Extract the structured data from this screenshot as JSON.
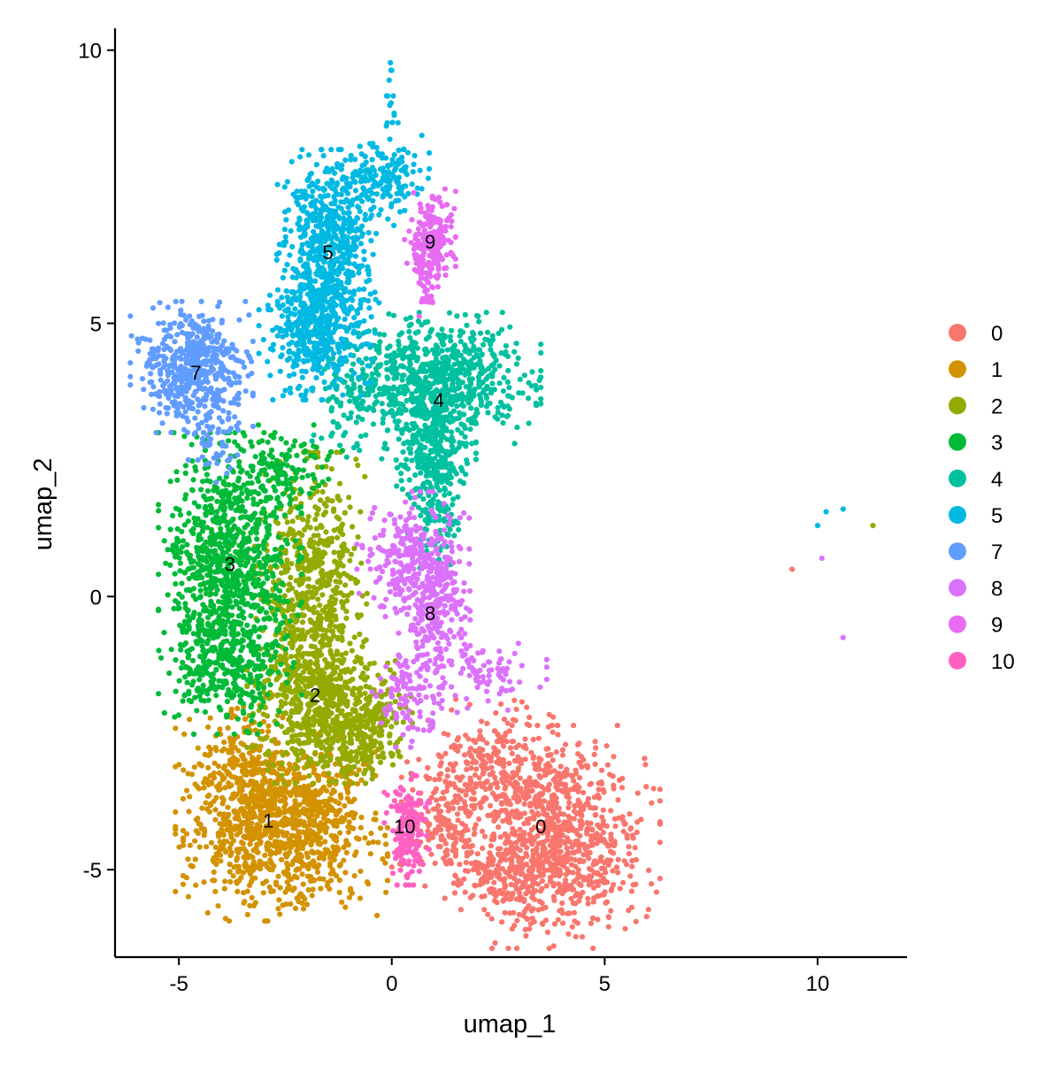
{
  "chart_data": {
    "type": "scatter",
    "title": "",
    "xlabel": "umap_1",
    "ylabel": "umap_2",
    "xlim": [
      -6.5,
      12.1
    ],
    "ylim": [
      -6.6,
      10.4
    ],
    "xticks": [
      -5,
      0,
      5,
      10
    ],
    "yticks": [
      -5,
      0,
      5,
      10
    ],
    "xtick_labels": [
      "-5",
      "0",
      "5",
      "10"
    ],
    "ytick_labels": [
      "-5",
      "0",
      "5",
      "10"
    ],
    "grid": false,
    "legend_position": "right",
    "series": [
      {
        "name": "0",
        "color": "#F8766D",
        "label_x": 3.5,
        "label_y": -4.2,
        "blobs": [
          {
            "cx": 3.9,
            "cy": -4.4,
            "sx": 1.0,
            "sy": 0.85,
            "n": 900
          },
          {
            "cx": 2.4,
            "cy": -3.2,
            "sx": 0.7,
            "sy": 0.55,
            "n": 260
          },
          {
            "cx": 1.2,
            "cy": -4.1,
            "sx": 0.5,
            "sy": 0.5,
            "n": 160
          },
          {
            "cx": 2.6,
            "cy": -5.1,
            "sx": 0.7,
            "sy": 0.3,
            "n": 140
          }
        ],
        "extra": [
          [
            9.4,
            0.5
          ]
        ]
      },
      {
        "name": "1",
        "color": "#D39200",
        "label_x": -2.9,
        "label_y": -4.1,
        "blobs": [
          {
            "cx": -3.4,
            "cy": -3.6,
            "sx": 0.7,
            "sy": 0.75,
            "n": 480
          },
          {
            "cx": -2.5,
            "cy": -4.5,
            "sx": 1.0,
            "sy": 0.6,
            "n": 560
          },
          {
            "cx": -1.7,
            "cy": -3.7,
            "sx": 0.55,
            "sy": 0.55,
            "n": 220
          }
        ],
        "extra": []
      },
      {
        "name": "2",
        "color": "#93AA00",
        "label_x": -1.8,
        "label_y": -1.8,
        "blobs": [
          {
            "cx": -1.9,
            "cy": 0.0,
            "sx": 0.55,
            "sy": 1.1,
            "n": 650
          },
          {
            "cx": -1.6,
            "cy": -2.1,
            "sx": 0.75,
            "sy": 0.55,
            "n": 520
          },
          {
            "cx": -0.6,
            "cy": -2.3,
            "sx": 0.45,
            "sy": 0.45,
            "n": 220
          }
        ],
        "extra": [
          [
            11.3,
            1.3
          ]
        ]
      },
      {
        "name": "3",
        "color": "#00BA38",
        "label_x": -3.8,
        "label_y": 0.6,
        "blobs": [
          {
            "cx": -3.8,
            "cy": 0.6,
            "sx": 0.7,
            "sy": 1.0,
            "n": 900
          },
          {
            "cx": -3.9,
            "cy": -1.2,
            "sx": 0.6,
            "sy": 0.55,
            "n": 320
          },
          {
            "cx": -2.6,
            "cy": 2.3,
            "sx": 0.6,
            "sy": 0.35,
            "n": 120
          }
        ],
        "extra": []
      },
      {
        "name": "4",
        "color": "#00C19F",
        "label_x": 1.1,
        "label_y": 3.6,
        "blobs": [
          {
            "cx": 1.1,
            "cy": 4.0,
            "sx": 1.0,
            "sy": 0.5,
            "n": 650
          },
          {
            "cx": 0.9,
            "cy": 2.8,
            "sx": 0.45,
            "sy": 0.55,
            "n": 320
          },
          {
            "cx": 1.1,
            "cy": 1.6,
            "sx": 0.3,
            "sy": 0.45,
            "n": 100
          },
          {
            "cx": -0.8,
            "cy": 3.6,
            "sx": 0.45,
            "sy": 0.45,
            "n": 120
          }
        ],
        "extra": []
      },
      {
        "name": "5",
        "color": "#00B9E3",
        "label_x": -1.5,
        "label_y": 6.3,
        "blobs": [
          {
            "cx": -1.5,
            "cy": 6.5,
            "sx": 0.5,
            "sy": 0.7,
            "n": 600
          },
          {
            "cx": -1.8,
            "cy": 4.8,
            "sx": 0.55,
            "sy": 0.5,
            "n": 420
          },
          {
            "cx": -0.2,
            "cy": 7.6,
            "sx": 0.45,
            "sy": 0.35,
            "n": 160
          },
          {
            "cx": 0.0,
            "cy": 9.0,
            "sx": 0.08,
            "sy": 0.45,
            "n": 16
          }
        ],
        "extra": [
          [
            10.0,
            1.3
          ],
          [
            10.2,
            1.55
          ],
          [
            10.6,
            1.6
          ]
        ]
      },
      {
        "name": "7",
        "color": "#619CFF",
        "label_x": -4.6,
        "label_y": 4.1,
        "blobs": [
          {
            "cx": -4.7,
            "cy": 4.2,
            "sx": 0.6,
            "sy": 0.5,
            "n": 520
          },
          {
            "cx": -4.2,
            "cy": 2.9,
            "sx": 0.4,
            "sy": 0.35,
            "n": 50
          }
        ],
        "extra": []
      },
      {
        "name": "8",
        "color": "#DB72FB",
        "label_x": 0.9,
        "label_y": -0.3,
        "blobs": [
          {
            "cx": 0.5,
            "cy": 0.6,
            "sx": 0.55,
            "sy": 0.55,
            "n": 300
          },
          {
            "cx": 1.0,
            "cy": -0.4,
            "sx": 0.35,
            "sy": 0.6,
            "n": 200
          },
          {
            "cx": 2.2,
            "cy": -1.4,
            "sx": 0.6,
            "sy": 0.3,
            "n": 80
          },
          {
            "cx": 0.5,
            "cy": -1.8,
            "sx": 0.4,
            "sy": 0.4,
            "n": 110
          }
        ],
        "extra": [
          [
            10.1,
            0.7
          ],
          [
            10.6,
            -0.75
          ]
        ]
      },
      {
        "name": "9",
        "color": "#E76BF3",
        "label_x": 0.9,
        "label_y": 6.5,
        "blobs": [
          {
            "cx": 0.9,
            "cy": 6.5,
            "sx": 0.25,
            "sy": 0.4,
            "n": 220
          },
          {
            "cx": 0.8,
            "cy": 5.7,
            "sx": 0.12,
            "sy": 0.3,
            "n": 30
          }
        ],
        "extra": []
      },
      {
        "name": "10",
        "color": "#FF61C3",
        "label_x": 0.3,
        "label_y": -4.2,
        "blobs": [
          {
            "cx": 0.35,
            "cy": -4.2,
            "sx": 0.22,
            "sy": 0.45,
            "n": 170
          }
        ],
        "extra": []
      }
    ],
    "legend_entries": [
      "0",
      "1",
      "2",
      "3",
      "4",
      "5",
      "7",
      "8",
      "9",
      "10"
    ],
    "palette": {
      "0": "#F8766D",
      "1": "#D39200",
      "2": "#93AA00",
      "3": "#00BA38",
      "4": "#00C19F",
      "5": "#00B9E3",
      "7": "#619CFF",
      "8": "#DB72FB",
      "9": "#E76BF3",
      "10": "#FF61C3"
    }
  }
}
